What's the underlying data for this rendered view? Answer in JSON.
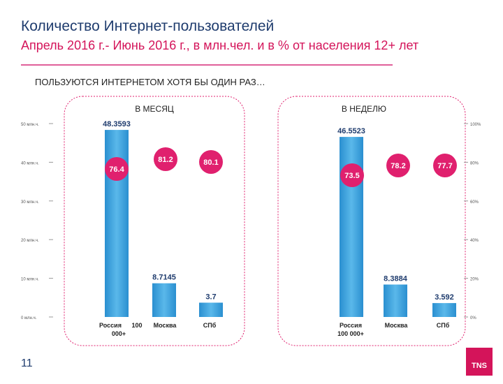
{
  "header": {
    "title": "Количество Интернет-пользователей",
    "subtitle": "Апрель 2016 г.- Июнь 2016 г., в млн.чел. и в % от населения 12+ лет",
    "section": "ПОЛЬЗУЮТСЯ ИНТЕРНЕТОМ ХОТЯ БЫ ОДИН РАЗ…"
  },
  "footer": {
    "page_number": "11",
    "logo": "TNS"
  },
  "colors": {
    "bar": "#2a8fd0",
    "bar_light": "#5ab8ea",
    "bubble": "#e0206e",
    "title": "#1f3c6e",
    "subtitle": "#d4145a",
    "value_label": "#1f3c6e"
  },
  "chart_data": [
    {
      "type": "bar",
      "title": "В МЕСЯЦ",
      "categories": [
        "Россия 100 000+",
        "Москва",
        "СПб"
      ],
      "category_label_lines": [
        [
          "Россия",
          "100",
          "000+"
        ],
        [
          "Москва"
        ],
        [
          "СПб"
        ]
      ],
      "values": [
        48.3593,
        8.7145,
        3.7
      ],
      "value_labels": [
        "48.3593",
        "8.7145",
        "3.7"
      ],
      "percent": [
        76.4,
        81.2,
        80.1
      ],
      "percent_labels": [
        "76.4",
        "81.2",
        "80.1"
      ],
      "yaxis": {
        "ticks": [
          "0 млн.ч.",
          "10 млн.ч.",
          "20 млн.ч.",
          "30 млн.ч.",
          "40 млн.ч.",
          "50 млн.ч."
        ],
        "ylim": [
          0,
          50
        ]
      }
    },
    {
      "type": "bar",
      "title": "В НЕДЕЛЮ",
      "categories": [
        "Россия 100 000+",
        "Москва",
        "СПб"
      ],
      "category_label_lines": [
        [
          "Россия",
          "100 000+"
        ],
        [
          "Москва"
        ],
        [
          "СПб"
        ]
      ],
      "values": [
        46.5523,
        8.3884,
        3.592
      ],
      "value_labels": [
        "46.5523",
        "8.3884",
        "3.592"
      ],
      "percent": [
        73.5,
        78.2,
        77.7
      ],
      "percent_labels": [
        "73.5",
        "78.2",
        "77.7"
      ],
      "yaxis_right": {
        "ticks": [
          "0%",
          "20%",
          "40%",
          "60%",
          "80%",
          "100%"
        ],
        "ylim": [
          0,
          100
        ]
      }
    }
  ]
}
